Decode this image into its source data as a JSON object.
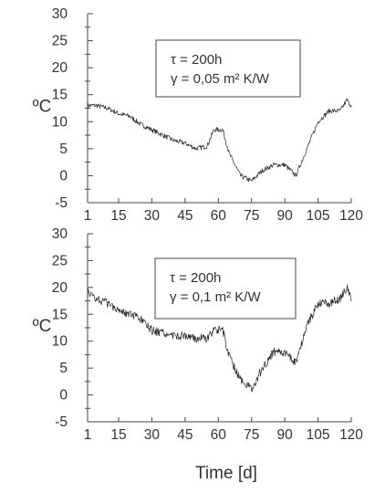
{
  "xlabel": "Time [d]",
  "chart_data": [
    {
      "type": "line",
      "ylabel": "ºC",
      "xlim": [
        1,
        120
      ],
      "ylim": [
        -5,
        30
      ],
      "x_ticks": [
        "1",
        "15",
        "30",
        "45",
        "60",
        "75",
        "90",
        "105",
        "120"
      ],
      "y_ticks": [
        "30",
        "25",
        "20",
        "15",
        "10",
        "5",
        "0",
        "-5"
      ],
      "annotation": [
        "τ = 200h",
        "γ = 0,05 m² K/W"
      ],
      "grid": false,
      "series": [
        {
          "x": [
            1,
            5,
            10,
            15,
            20,
            25,
            30,
            35,
            40,
            45,
            50,
            55,
            58,
            62,
            65,
            70,
            75,
            80,
            85,
            90,
            95,
            100,
            105,
            110,
            115,
            118,
            120
          ],
          "values": [
            13,
            13,
            12.5,
            11.5,
            11,
            9.5,
            8.5,
            7.5,
            6.5,
            6,
            5,
            5.5,
            8.5,
            8.5,
            4,
            0,
            -1,
            1,
            2,
            2,
            0,
            5,
            10,
            12,
            12,
            14,
            13
          ]
        }
      ]
    },
    {
      "type": "line",
      "ylabel": "ºC",
      "xlim": [
        1,
        120
      ],
      "ylim": [
        -5,
        30
      ],
      "x_ticks": [
        "1",
        "15",
        "30",
        "45",
        "60",
        "75",
        "90",
        "105",
        "120"
      ],
      "y_ticks": [
        "30",
        "25",
        "20",
        "15",
        "10",
        "5",
        "0",
        "-5"
      ],
      "annotation": [
        "τ = 200h",
        "γ = 0,1 m² K/W"
      ],
      "grid": false,
      "series": [
        {
          "x": [
            1,
            5,
            10,
            15,
            20,
            25,
            30,
            35,
            40,
            45,
            50,
            55,
            58,
            62,
            65,
            70,
            75,
            80,
            85,
            90,
            95,
            100,
            105,
            110,
            115,
            118,
            120
          ],
          "values": [
            19,
            18,
            17,
            16,
            15,
            14,
            12,
            11.5,
            11,
            11,
            10.5,
            10.5,
            12,
            12,
            7,
            3,
            1,
            5,
            8,
            8,
            6,
            13,
            17,
            17,
            18,
            20,
            18
          ]
        }
      ]
    }
  ]
}
